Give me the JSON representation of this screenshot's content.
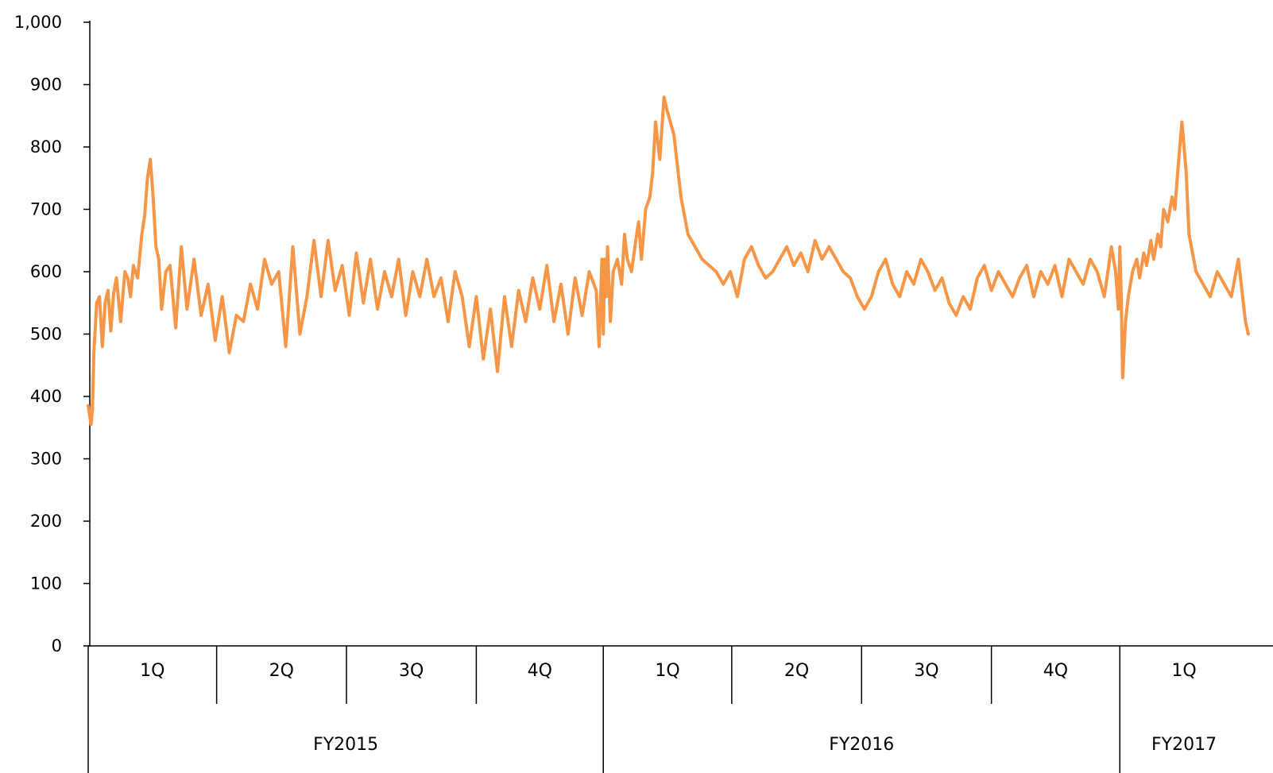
{
  "chart_data": {
    "type": "line",
    "title": "",
    "xlabel": "",
    "ylabel": "",
    "ylim": [
      0,
      1000
    ],
    "yticks": [
      0,
      100,
      200,
      300,
      400,
      500,
      600,
      700,
      800,
      900,
      1000
    ],
    "ytick_labels": [
      "0",
      "100",
      "200",
      "300",
      "400",
      "500",
      "600",
      "700",
      "800",
      "900",
      "1,000"
    ],
    "grid": false,
    "legend": "none",
    "line_color": "#F79646",
    "axis_color": "#000000",
    "x_unit": "day",
    "x_range": [
      0,
      1481
    ],
    "quarters": [
      {
        "label": "1Q",
        "start": 0,
        "end": 91
      },
      {
        "label": "2Q",
        "start": 91,
        "end": 183
      },
      {
        "label": "3Q",
        "start": 183,
        "end": 275
      },
      {
        "label": "4Q",
        "start": 275,
        "end": 365
      },
      {
        "label": "1Q",
        "start": 365,
        "end": 456
      },
      {
        "label": "2Q",
        "start": 456,
        "end": 548
      },
      {
        "label": "3Q",
        "start": 548,
        "end": 640
      },
      {
        "label": "4Q",
        "start": 640,
        "end": 731
      },
      {
        "label": "1Q",
        "start": 731,
        "end": 822
      }
    ],
    "fiscal_years": [
      {
        "label": "FY2015",
        "start": 0,
        "end": 365
      },
      {
        "label": "FY2016",
        "start": 365,
        "end": 731
      },
      {
        "label": "FY2017",
        "start": 731,
        "end": 822
      }
    ],
    "series": [
      {
        "x": [
          0,
          1,
          2,
          3,
          4,
          6,
          8,
          10,
          12,
          14,
          16,
          18,
          20,
          23,
          26,
          28,
          30,
          32,
          35,
          38,
          40,
          42,
          44,
          46,
          47,
          48,
          50,
          52,
          55,
          58,
          62,
          66,
          70,
          75,
          80,
          85,
          90,
          95,
          100,
          105,
          110,
          115,
          120,
          125,
          130,
          135,
          140,
          145,
          150,
          155,
          160,
          165,
          170,
          175,
          180,
          185,
          190,
          195,
          200,
          205,
          210,
          215,
          220,
          225,
          230,
          235,
          240,
          245,
          250,
          255,
          260,
          265,
          270,
          275,
          280,
          285,
          290,
          295,
          300,
          305,
          310,
          315,
          320,
          325,
          330,
          335,
          340,
          345,
          350,
          355,
          360,
          362,
          364,
          365,
          366,
          367,
          368,
          370,
          372,
          375,
          378,
          380,
          382,
          385,
          388,
          390,
          392,
          395,
          398,
          400,
          402,
          405,
          408,
          410,
          415,
          420,
          425,
          430,
          435,
          440,
          445,
          450,
          455,
          460,
          465,
          470,
          475,
          480,
          485,
          490,
          495,
          500,
          505,
          510,
          515,
          520,
          525,
          530,
          535,
          540,
          545,
          550,
          555,
          560,
          565,
          570,
          575,
          580,
          585,
          590,
          595,
          600,
          605,
          610,
          615,
          620,
          625,
          630,
          635,
          640,
          645,
          650,
          655,
          660,
          665,
          670,
          675,
          680,
          685,
          690,
          695,
          700,
          705,
          710,
          715,
          720,
          725,
          728,
          730,
          731,
          732,
          733,
          735,
          737,
          740,
          743,
          745,
          748,
          750,
          753,
          755,
          758,
          760,
          762,
          765,
          768,
          770,
          772,
          775,
          778,
          780,
          785,
          790,
          795,
          800,
          805,
          810,
          815,
          820,
          822
        ],
        "y": [
          385,
          370,
          355,
          380,
          470,
          550,
          560,
          480,
          550,
          570,
          505,
          565,
          590,
          520,
          600,
          590,
          560,
          610,
          590,
          660,
          690,
          750,
          780,
          720,
          680,
          640,
          620,
          540,
          600,
          610,
          510,
          640,
          540,
          620,
          530,
          580,
          490,
          560,
          470,
          530,
          520,
          580,
          540,
          620,
          580,
          600,
          480,
          640,
          500,
          560,
          650,
          560,
          650,
          570,
          610,
          530,
          630,
          550,
          620,
          540,
          600,
          560,
          620,
          530,
          600,
          560,
          620,
          560,
          590,
          520,
          600,
          560,
          480,
          560,
          460,
          540,
          440,
          560,
          480,
          570,
          520,
          590,
          540,
          610,
          520,
          580,
          500,
          590,
          530,
          600,
          570,
          480,
          620,
          500,
          620,
          560,
          640,
          520,
          600,
          620,
          580,
          660,
          620,
          600,
          650,
          680,
          620,
          700,
          720,
          760,
          840,
          780,
          880,
          860,
          820,
          720,
          660,
          640,
          620,
          610,
          600,
          580,
          600,
          560,
          620,
          640,
          610,
          590,
          600,
          620,
          640,
          610,
          630,
          600,
          650,
          620,
          640,
          620,
          600,
          590,
          560,
          540,
          560,
          600,
          620,
          580,
          560,
          600,
          580,
          620,
          600,
          570,
          590,
          550,
          530,
          560,
          540,
          590,
          610,
          570,
          600,
          580,
          560,
          590,
          610,
          560,
          600,
          580,
          610,
          560,
          620,
          600,
          580,
          620,
          600,
          560,
          640,
          600,
          540,
          640,
          560,
          430,
          520,
          560,
          600,
          620,
          590,
          630,
          610,
          650,
          620,
          660,
          640,
          700,
          680,
          720,
          700,
          760,
          840,
          760,
          660,
          600,
          580,
          560,
          600,
          580,
          560,
          620,
          520,
          500
        ]
      }
    ]
  }
}
